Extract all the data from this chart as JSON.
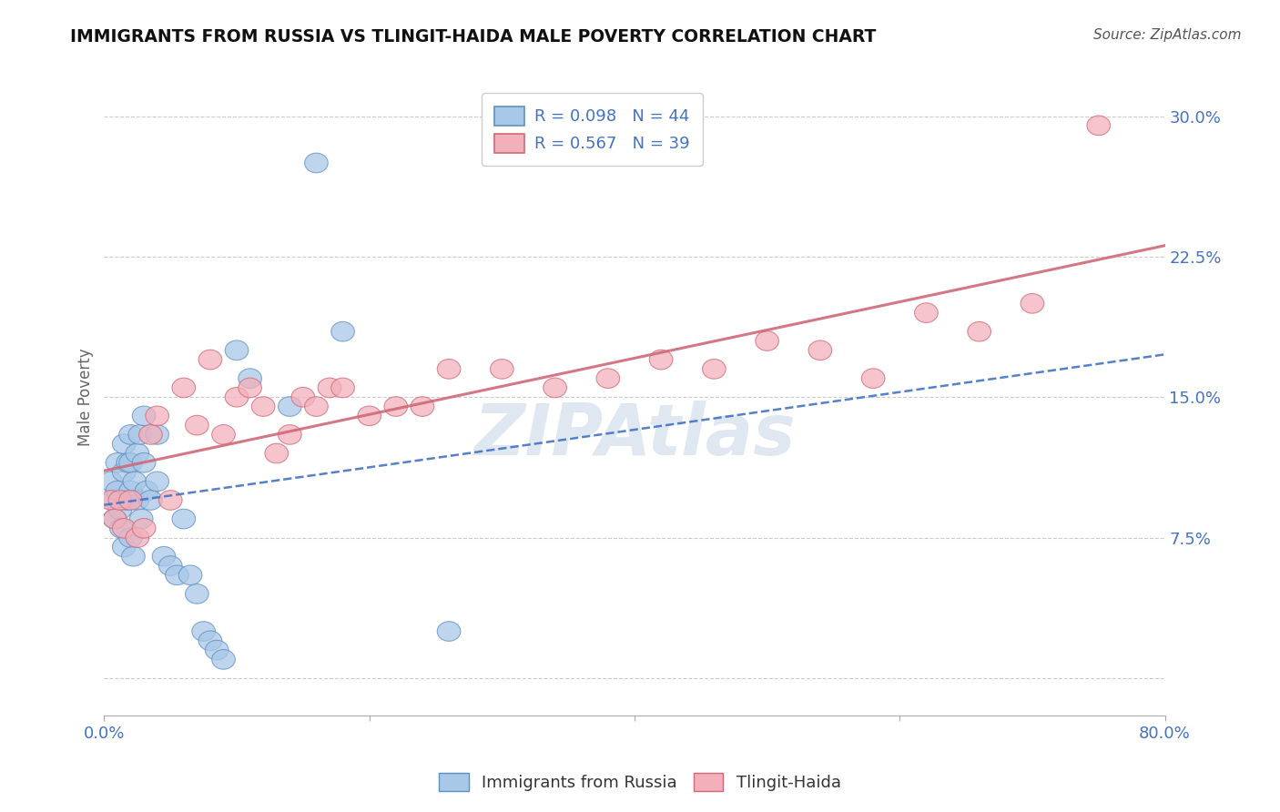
{
  "title": "IMMIGRANTS FROM RUSSIA VS TLINGIT-HAIDA MALE POVERTY CORRELATION CHART",
  "source": "Source: ZipAtlas.com",
  "ylabel": "Male Poverty",
  "xlim": [
    0.0,
    0.8
  ],
  "ylim": [
    -0.02,
    0.32
  ],
  "yplot_min": 0.0,
  "yplot_max": 0.3,
  "xticks": [
    0.0,
    0.2,
    0.4,
    0.6,
    0.8
  ],
  "xtick_labels": [
    "0.0%",
    "",
    "",
    "",
    "80.0%"
  ],
  "yticks": [
    0.0,
    0.075,
    0.15,
    0.225,
    0.3
  ],
  "ytick_labels": [
    "",
    "7.5%",
    "15.0%",
    "22.5%",
    "30.0%"
  ],
  "legend1_label": "R = 0.098   N = 44",
  "legend2_label": "R = 0.567   N = 39",
  "legend_label1_bottom": "Immigrants from Russia",
  "legend_label2_bottom": "Tlingit-Haida",
  "blue_color": "#A8C8E8",
  "pink_color": "#F2B0BB",
  "blue_edge_color": "#6090C0",
  "pink_edge_color": "#D06878",
  "blue_line_color": "#4472C4",
  "pink_line_color": "#D06878",
  "legend_text_color": "#4472C4",
  "watermark": "ZIPAtlas",
  "blue_x": [
    0.005,
    0.007,
    0.008,
    0.01,
    0.01,
    0.012,
    0.013,
    0.015,
    0.015,
    0.015,
    0.017,
    0.018,
    0.02,
    0.02,
    0.02,
    0.02,
    0.022,
    0.023,
    0.025,
    0.025,
    0.027,
    0.028,
    0.03,
    0.03,
    0.032,
    0.035,
    0.04,
    0.04,
    0.045,
    0.05,
    0.055,
    0.06,
    0.065,
    0.07,
    0.075,
    0.08,
    0.085,
    0.09,
    0.1,
    0.11,
    0.14,
    0.16,
    0.18,
    0.26
  ],
  "blue_y": [
    0.105,
    0.095,
    0.085,
    0.115,
    0.1,
    0.09,
    0.08,
    0.125,
    0.11,
    0.07,
    0.095,
    0.115,
    0.13,
    0.115,
    0.1,
    0.075,
    0.065,
    0.105,
    0.12,
    0.095,
    0.13,
    0.085,
    0.14,
    0.115,
    0.1,
    0.095,
    0.13,
    0.105,
    0.065,
    0.06,
    0.055,
    0.085,
    0.055,
    0.045,
    0.025,
    0.02,
    0.015,
    0.01,
    0.175,
    0.16,
    0.145,
    0.275,
    0.185,
    0.025
  ],
  "pink_x": [
    0.005,
    0.008,
    0.012,
    0.015,
    0.02,
    0.025,
    0.03,
    0.035,
    0.04,
    0.05,
    0.06,
    0.07,
    0.08,
    0.09,
    0.1,
    0.11,
    0.12,
    0.13,
    0.14,
    0.15,
    0.16,
    0.17,
    0.18,
    0.2,
    0.22,
    0.24,
    0.26,
    0.3,
    0.34,
    0.38,
    0.42,
    0.46,
    0.5,
    0.54,
    0.58,
    0.62,
    0.66,
    0.7,
    0.75
  ],
  "pink_y": [
    0.095,
    0.085,
    0.095,
    0.08,
    0.095,
    0.075,
    0.08,
    0.13,
    0.14,
    0.095,
    0.155,
    0.135,
    0.17,
    0.13,
    0.15,
    0.155,
    0.145,
    0.12,
    0.13,
    0.15,
    0.145,
    0.155,
    0.155,
    0.14,
    0.145,
    0.145,
    0.165,
    0.165,
    0.155,
    0.16,
    0.17,
    0.165,
    0.18,
    0.175,
    0.16,
    0.195,
    0.185,
    0.2,
    0.295
  ]
}
